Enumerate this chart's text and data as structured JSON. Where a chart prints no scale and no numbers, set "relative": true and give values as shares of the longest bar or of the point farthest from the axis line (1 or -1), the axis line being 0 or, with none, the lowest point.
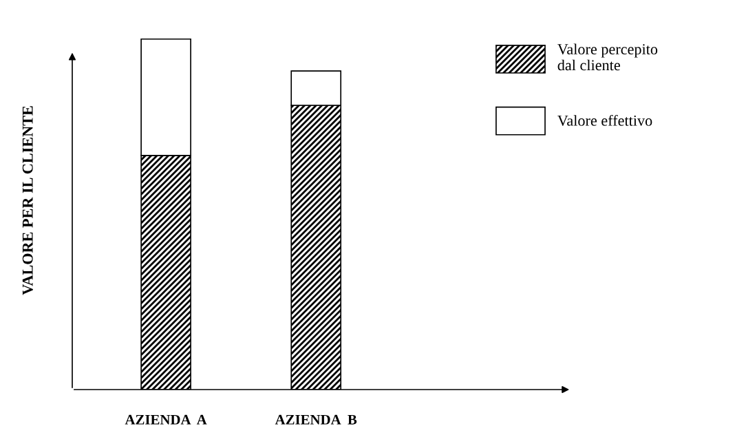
{
  "chart_data": {
    "type": "bar",
    "stacked": true,
    "relative": true,
    "ylabel": "VALORE PER IL CLIENTE",
    "categories": [
      "AZIENDA  A",
      "AZIENDA  B"
    ],
    "series": [
      {
        "name": "Valore percepito\ndal cliente",
        "color": "#000000",
        "values": [
          0.668,
          0.811
        ]
      },
      {
        "name": "Valore effettivo",
        "color": "#ffffff",
        "values": [
          0.332,
          0.098
        ]
      }
    ],
    "legend": "top right",
    "grid": false
  }
}
